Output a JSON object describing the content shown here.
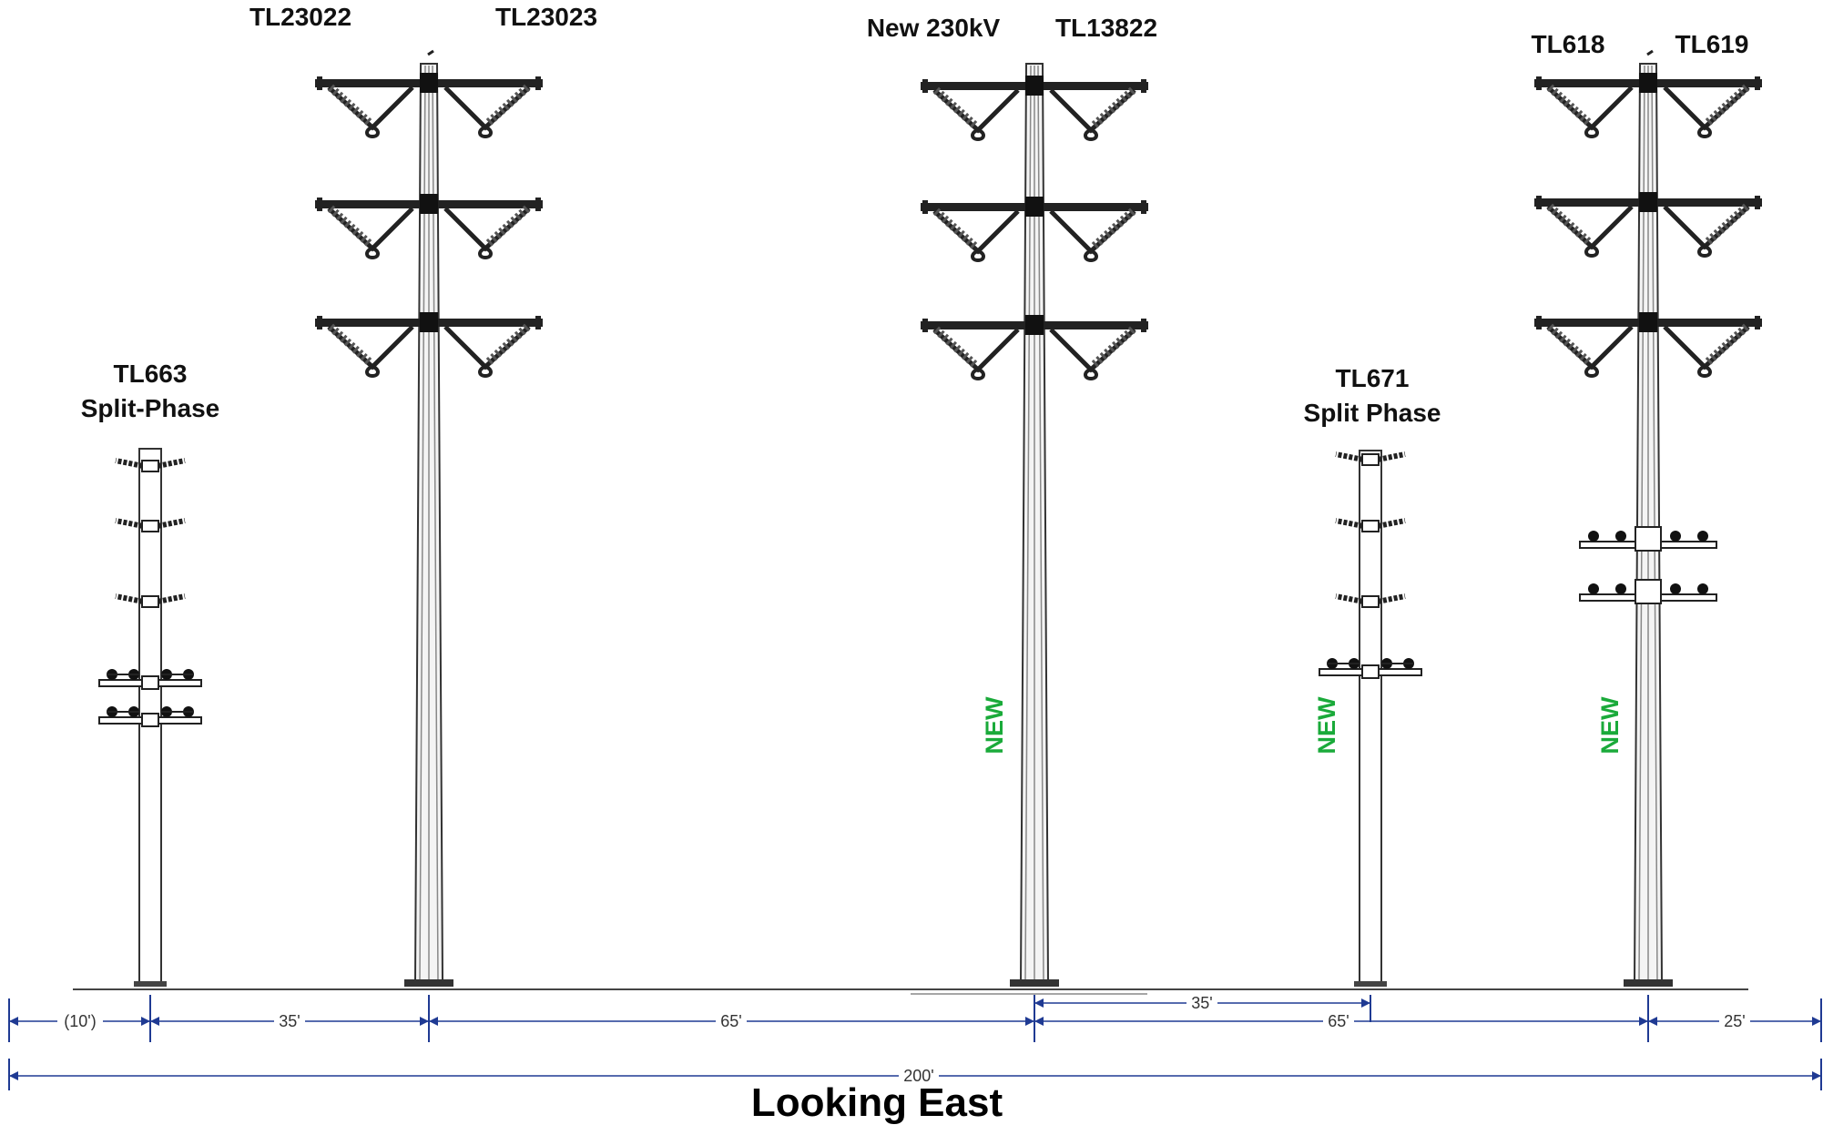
{
  "caption": "Looking East",
  "colors": {
    "new_label": "#1aaa3a",
    "dimension": "#1f3a93",
    "structure": "#222222"
  },
  "structures": [
    {
      "id": "tl663",
      "lines": [
        "TL663",
        "Split-Phase"
      ],
      "type": "wood-pole-split-phase",
      "new": ""
    },
    {
      "id": "tl23022-tl23023",
      "lines": [
        "TL23022",
        "TL23023"
      ],
      "type": "steel-double-circuit",
      "new": ""
    },
    {
      "id": "new230-tl13822",
      "lines": [
        "New 230kV",
        "TL13822"
      ],
      "type": "steel-double-circuit",
      "new": "NEW"
    },
    {
      "id": "tl671",
      "lines": [
        "TL671",
        "Split Phase"
      ],
      "type": "wood-pole-split-phase",
      "new": "NEW"
    },
    {
      "id": "tl618-tl619",
      "lines": [
        "TL618",
        "TL619"
      ],
      "type": "steel-double-circuit-with-underbuild",
      "new": "NEW"
    }
  ],
  "dimensions": {
    "spacings": [
      "(10')",
      "35'",
      "65'",
      "65'",
      "25'"
    ],
    "offset": "35'",
    "total": "200'"
  }
}
